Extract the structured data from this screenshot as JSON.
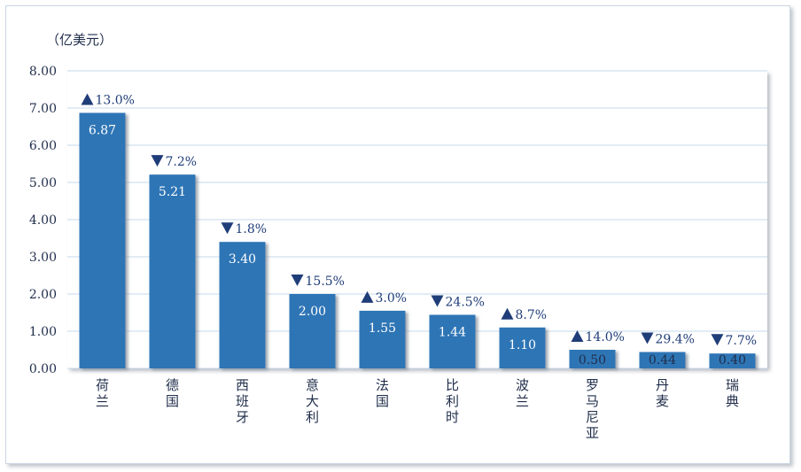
{
  "chart_data": {
    "type": "bar",
    "unit_label": "（亿美元）",
    "categories": [
      "荷兰",
      "德国",
      "西班牙",
      "意大利",
      "法国",
      "比利时",
      "波兰",
      "罗马尼亚",
      "丹麦",
      "瑞典"
    ],
    "values": [
      6.87,
      5.21,
      3.4,
      2.0,
      1.55,
      1.44,
      1.1,
      0.5,
      0.44,
      0.4
    ],
    "value_labels": [
      "6.87",
      "5.21",
      "3.40",
      "2.00",
      "1.55",
      "1.44",
      "1.10",
      "0.50",
      "0.44",
      "0.40"
    ],
    "changes": [
      {
        "direction": "up",
        "text": "13.0%"
      },
      {
        "direction": "down",
        "text": "7.2%"
      },
      {
        "direction": "down",
        "text": "1.8%"
      },
      {
        "direction": "down",
        "text": "15.5%"
      },
      {
        "direction": "up",
        "text": "3.0%"
      },
      {
        "direction": "down",
        "text": "24.5%"
      },
      {
        "direction": "up",
        "text": "8.7%"
      },
      {
        "direction": "up",
        "text": "14.0%"
      },
      {
        "direction": "down",
        "text": "29.4%"
      },
      {
        "direction": "down",
        "text": "7.7%"
      }
    ],
    "ylim": [
      0,
      8
    ],
    "yticks": [
      "0.00",
      "1.00",
      "2.00",
      "3.00",
      "4.00",
      "5.00",
      "6.00",
      "7.00",
      "8.00"
    ],
    "grid": true,
    "colors": {
      "bar": "#2e74b5",
      "bar_shadow": "#9aa3ad",
      "grid": "#c5d9ee",
      "text": "#1f2d4a",
      "change_text": "#1f3d78"
    }
  }
}
